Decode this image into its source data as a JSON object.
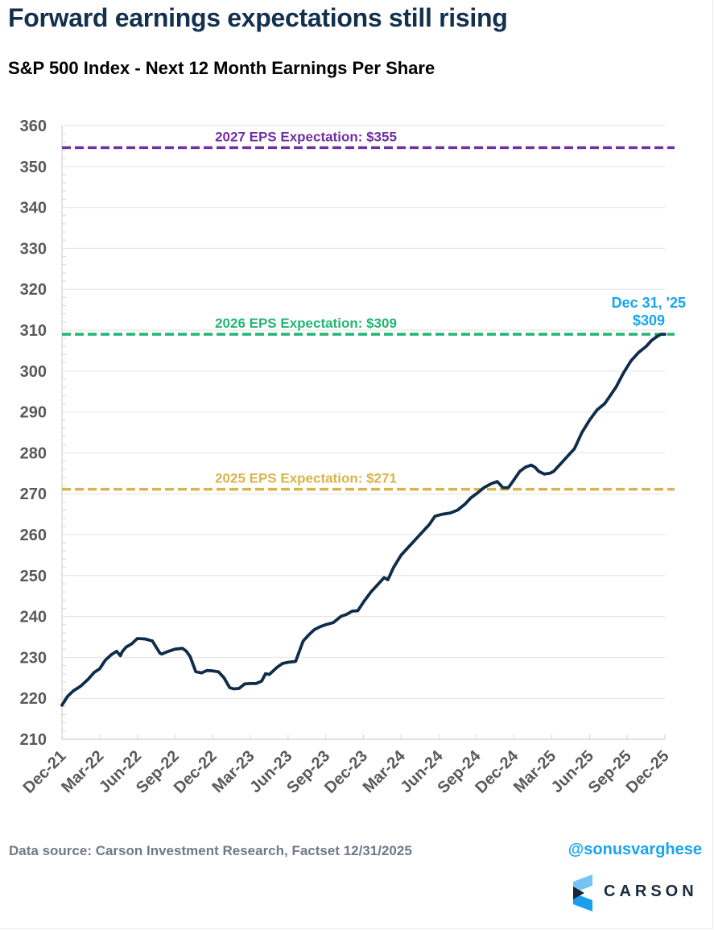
{
  "header": {
    "title": "Forward earnings expectations still rising",
    "subtitle": "S&P 500 Index - Next 12 Month Earnings Per Share"
  },
  "footer": {
    "source": "Data source: Carson Investment Research, Factset   12/31/2025",
    "handle": "@sonusvarghese",
    "logo_text": "CARSON"
  },
  "colors": {
    "series": "#0f2d4a",
    "eps_2027": "#7030a0",
    "eps_2026": "#22b573",
    "eps_2025": "#d9b44a",
    "end_label": "#16a4f0",
    "axis_text": "#595959",
    "grid": "#e3e3e3"
  },
  "chart_data": {
    "type": "line",
    "title": "S&P 500 Index - Next 12 Month Earnings Per Share",
    "xlabel": "",
    "ylabel": "",
    "ylim": [
      210,
      360
    ],
    "yticks": [
      210,
      220,
      230,
      240,
      250,
      260,
      270,
      280,
      290,
      300,
      310,
      320,
      330,
      340,
      350,
      360
    ],
    "xlim": [
      0,
      16
    ],
    "x_unit": "quarters since Dec-21",
    "xtick_labels": [
      "Dec-21",
      "Mar-22",
      "Jun-22",
      "Sep-22",
      "Dec-22",
      "Mar-23",
      "Jun-23",
      "Sep-23",
      "Dec-23",
      "Mar-24",
      "Jun-24",
      "Sep-24",
      "Dec-24",
      "Mar-25",
      "Jun-25",
      "Sep-25",
      "Dec-25"
    ],
    "grid": true,
    "legend": "none",
    "series": [
      {
        "name": "Next 12 Month EPS",
        "x": [
          0,
          0.15,
          0.3,
          0.5,
          0.7,
          0.85,
          1.0,
          1.15,
          1.3,
          1.45,
          1.55,
          1.6,
          1.7,
          1.85,
          2.0,
          2.2,
          2.4,
          2.6,
          2.65,
          2.8,
          3.0,
          3.2,
          3.3,
          3.4,
          3.55,
          3.7,
          3.85,
          4.0,
          4.15,
          4.3,
          4.45,
          4.55,
          4.7,
          4.85,
          5.0,
          5.15,
          5.3,
          5.4,
          5.5,
          5.7,
          5.85,
          6.0,
          6.2,
          6.4,
          6.55,
          6.7,
          6.85,
          7.0,
          7.2,
          7.4,
          7.55,
          7.7,
          7.85,
          8.0,
          8.2,
          8.4,
          8.55,
          8.65,
          8.8,
          9.0,
          9.2,
          9.4,
          9.6,
          9.75,
          9.9,
          10.1,
          10.3,
          10.5,
          10.7,
          10.85,
          11.0,
          11.2,
          11.4,
          11.55,
          11.7,
          11.85,
          12.0,
          12.15,
          12.3,
          12.45,
          12.55,
          12.65,
          12.8,
          12.95,
          13.05,
          13.15,
          13.3,
          13.45,
          13.6,
          13.8,
          14.0,
          14.2,
          14.4,
          14.55,
          14.7,
          14.9,
          15.1,
          15.3,
          15.5,
          15.65,
          15.8,
          15.9,
          16.0
        ],
        "values": [
          218.3,
          220.5,
          221.8,
          223.0,
          224.7,
          226.3,
          227.2,
          229.3,
          230.6,
          231.5,
          230.4,
          231.4,
          232.5,
          233.3,
          234.6,
          234.5,
          234.0,
          231.0,
          230.8,
          231.4,
          232.0,
          232.2,
          231.5,
          230.2,
          226.5,
          226.2,
          226.8,
          226.7,
          226.5,
          225.0,
          222.6,
          222.3,
          222.4,
          223.5,
          223.6,
          223.6,
          224.2,
          226.0,
          225.8,
          227.5,
          228.5,
          228.8,
          229.0,
          234.0,
          235.5,
          236.8,
          237.5,
          238.0,
          238.5,
          240.0,
          240.5,
          241.3,
          241.4,
          243.5,
          246.0,
          248.0,
          249.5,
          249.0,
          252.0,
          255.0,
          257.0,
          259.0,
          261.0,
          262.5,
          264.5,
          265.0,
          265.3,
          266.0,
          267.5,
          269.0,
          270.0,
          271.5,
          272.5,
          273.0,
          271.5,
          271.5,
          273.5,
          275.5,
          276.5,
          277.0,
          276.5,
          275.5,
          274.8,
          275.0,
          275.5,
          276.5,
          278.0,
          279.5,
          281.0,
          285.0,
          288.0,
          290.5,
          292.0,
          294.0,
          296.0,
          299.5,
          302.5,
          304.5,
          306.0,
          307.5,
          308.5,
          309.0,
          309.0
        ]
      }
    ],
    "reference_lines": [
      {
        "label": "2027 EPS Expectation: $355",
        "value": 354.6,
        "color_key": "eps_2027"
      },
      {
        "label": "2026 EPS Expectation: $309",
        "value": 309.0,
        "color_key": "eps_2026"
      },
      {
        "label": "2025 EPS Expectation: $271",
        "value": 271.1,
        "color_key": "eps_2025"
      }
    ],
    "annotations": [
      {
        "text_line1": "Dec 31, '25",
        "text_line2": "$309",
        "x": 16,
        "y": 309
      }
    ]
  }
}
